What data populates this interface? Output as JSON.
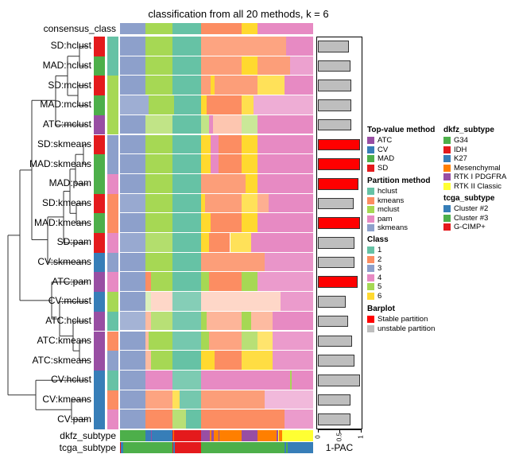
{
  "chart_data": {
    "type": "heatmap",
    "title": "classification from all 20 methods, k = 6",
    "consensus_label": "consensus_class",
    "consensus": [
      {
        "class": 3,
        "end_pct": 13
      },
      {
        "class": 5,
        "end_pct": 27
      },
      {
        "class": 1,
        "end_pct": 42
      },
      {
        "class": 2,
        "end_pct": 63
      },
      {
        "class": 6,
        "end_pct": 71
      },
      {
        "class": 4,
        "end_pct": 100
      }
    ],
    "class_colors": {
      "1": "#66C2A5",
      "2": "#FC8D62",
      "3": "#8DA0CB",
      "4": "#E78AC3",
      "5": "#A6D854",
      "6": "#FFD92F"
    },
    "method_colors": {
      "ATC": "#984EA3",
      "CV": "#377EB8",
      "MAD": "#4DAF4A",
      "SD": "#E41A1C"
    },
    "partition_colors": {
      "hclust": "#66C2A5",
      "kmeans": "#FC8D62",
      "mclust": "#A6D854",
      "pam": "#E78AC3",
      "skmeans": "#8DA0CB"
    },
    "rows": [
      {
        "label": "SD:hclust",
        "top": "SD",
        "part": "hclust",
        "pac": 0.73,
        "stable": false,
        "segs": [
          [
            3,
            13
          ],
          [
            5,
            27
          ],
          [
            1,
            42
          ],
          [
            2,
            86,
            0.8
          ],
          [
            4,
            100
          ]
        ]
      },
      {
        "label": "MAD:hclust",
        "top": "MAD",
        "part": "hclust",
        "pac": 0.76,
        "stable": false,
        "segs": [
          [
            3,
            13
          ],
          [
            5,
            27
          ],
          [
            1,
            42
          ],
          [
            2,
            63,
            0.85
          ],
          [
            6,
            71
          ],
          [
            2,
            88,
            0.85
          ],
          [
            4,
            100,
            0.8
          ]
        ]
      },
      {
        "label": "SD:mclust",
        "top": "SD",
        "part": "mclust",
        "pac": 0.78,
        "stable": false,
        "segs": [
          [
            3,
            13
          ],
          [
            5,
            27
          ],
          [
            1,
            42
          ],
          [
            2,
            47,
            0.85
          ],
          [
            6,
            49
          ],
          [
            2,
            71,
            0.85
          ],
          [
            6,
            85,
            0.8
          ],
          [
            4,
            100
          ]
        ]
      },
      {
        "label": "MAD:mclust",
        "top": "MAD",
        "part": "mclust",
        "pac": 0.77,
        "stable": false,
        "segs": [
          [
            3,
            15,
            0.85
          ],
          [
            5,
            28
          ],
          [
            1,
            42
          ],
          [
            6,
            45
          ],
          [
            2,
            63
          ],
          [
            6,
            69,
            0.85
          ],
          [
            4,
            100,
            0.7
          ]
        ]
      },
      {
        "label": "ATC:mclust",
        "top": "ATC",
        "part": "mclust",
        "pac": 0.78,
        "stable": false,
        "segs": [
          [
            3,
            13
          ],
          [
            5,
            27,
            0.7
          ],
          [
            1,
            42
          ],
          [
            5,
            46,
            0.7
          ],
          [
            4,
            48
          ],
          [
            2,
            63,
            0.5
          ],
          [
            5,
            71,
            0.6
          ],
          [
            4,
            100
          ]
        ]
      },
      {
        "label": "SD:skmeans",
        "top": "SD",
        "part": "skmeans",
        "pac": 0.99,
        "stable": true,
        "segs": [
          [
            3,
            13
          ],
          [
            5,
            27
          ],
          [
            1,
            42
          ],
          [
            6,
            47
          ],
          [
            4,
            51
          ],
          [
            2,
            63
          ],
          [
            6,
            71
          ],
          [
            4,
            100
          ]
        ]
      },
      {
        "label": "MAD:skmeans",
        "top": "MAD",
        "part": "skmeans",
        "pac": 0.98,
        "stable": true,
        "segs": [
          [
            3,
            13
          ],
          [
            5,
            27
          ],
          [
            1,
            42
          ],
          [
            6,
            47
          ],
          [
            4,
            51
          ],
          [
            2,
            63
          ],
          [
            6,
            71
          ],
          [
            4,
            100
          ]
        ]
      },
      {
        "label": "MAD:pam",
        "top": "MAD",
        "part": "pam",
        "pac": 0.95,
        "stable": true,
        "segs": [
          [
            3,
            13
          ],
          [
            5,
            27
          ],
          [
            1,
            42
          ],
          [
            2,
            65,
            0.85
          ],
          [
            6,
            71
          ],
          [
            4,
            100
          ]
        ]
      },
      {
        "label": "SD:kmeans",
        "top": "SD",
        "part": "kmeans",
        "pac": 0.83,
        "stable": false,
        "segs": [
          [
            3,
            13,
            0.9
          ],
          [
            5,
            27
          ],
          [
            1,
            42
          ],
          [
            6,
            44
          ],
          [
            2,
            63,
            0.85
          ],
          [
            6,
            71,
            0.8
          ],
          [
            2,
            77,
            0.7
          ],
          [
            4,
            100
          ]
        ]
      },
      {
        "label": "MAD:kmeans",
        "top": "MAD",
        "part": "kmeans",
        "pac": 0.98,
        "stable": true,
        "segs": [
          [
            3,
            13
          ],
          [
            5,
            27
          ],
          [
            1,
            42
          ],
          [
            6,
            47
          ],
          [
            2,
            63
          ],
          [
            6,
            71
          ],
          [
            4,
            100
          ]
        ]
      },
      {
        "label": "SD:pam",
        "top": "SD",
        "part": "pam",
        "pac": 0.86,
        "stable": false,
        "segs": [
          [
            3,
            13,
            0.9
          ],
          [
            5,
            27,
            0.85
          ],
          [
            1,
            42
          ],
          [
            6,
            46
          ],
          [
            2,
            57
          ],
          [
            6,
            68,
            0.8
          ],
          [
            4,
            100
          ]
        ]
      },
      {
        "label": "CV:skmeans",
        "top": "CV",
        "part": "skmeans",
        "pac": 0.85,
        "stable": false,
        "segs": [
          [
            3,
            13
          ],
          [
            5,
            27
          ],
          [
            1,
            42
          ],
          [
            2,
            75,
            0.85
          ],
          [
            4,
            100,
            0.9
          ]
        ]
      },
      {
        "label": "ATC:pam",
        "top": "ATC",
        "part": "pam",
        "pac": 0.92,
        "stable": true,
        "segs": [
          [
            3,
            13
          ],
          [
            2,
            16
          ],
          [
            5,
            27
          ],
          [
            1,
            42
          ],
          [
            5,
            46
          ],
          [
            2,
            63
          ],
          [
            5,
            71
          ],
          [
            4,
            100,
            0.85
          ]
        ]
      },
      {
        "label": "CV:mclust",
        "top": "CV",
        "part": "mclust",
        "pac": 0.64,
        "stable": false,
        "segs": [
          [
            3,
            13
          ],
          [
            5,
            16,
            0.4
          ],
          [
            2,
            27,
            0.35
          ],
          [
            1,
            42,
            0.8
          ],
          [
            2,
            83,
            0.35
          ],
          [
            4,
            100,
            0.85
          ]
        ]
      },
      {
        "label": "ATC:hclust",
        "top": "ATC",
        "part": "hclust",
        "pac": 0.7,
        "stable": false,
        "segs": [
          [
            3,
            13,
            0.8
          ],
          [
            2,
            16,
            0.6
          ],
          [
            5,
            27,
            0.8
          ],
          [
            1,
            42,
            0.9
          ],
          [
            5,
            45
          ],
          [
            2,
            63,
            0.65
          ],
          [
            5,
            68
          ],
          [
            2,
            79,
            0.6
          ],
          [
            4,
            100
          ]
        ]
      },
      {
        "label": "ATC:kmeans",
        "top": "ATC",
        "part": "kmeans",
        "pac": 0.8,
        "stable": false,
        "segs": [
          [
            3,
            13
          ],
          [
            2,
            15,
            0.6
          ],
          [
            5,
            27
          ],
          [
            1,
            42,
            0.9
          ],
          [
            5,
            46
          ],
          [
            2,
            63,
            0.8
          ],
          [
            5,
            71,
            0.8
          ],
          [
            6,
            79,
            0.7
          ],
          [
            4,
            100,
            0.85
          ]
        ]
      },
      {
        "label": "ATC:skmeans",
        "top": "ATC",
        "part": "skmeans",
        "pac": 0.85,
        "stable": false,
        "segs": [
          [
            3,
            13
          ],
          [
            2,
            16,
            0.6
          ],
          [
            5,
            27
          ],
          [
            1,
            42
          ],
          [
            6,
            49
          ],
          [
            2,
            63
          ],
          [
            6,
            79,
            0.9
          ],
          [
            4,
            100,
            0.9
          ]
        ]
      },
      {
        "label": "CV:hclust",
        "top": "CV",
        "part": "hclust",
        "pac": 0.98,
        "stable": false,
        "segs": [
          [
            3,
            13
          ],
          [
            4,
            27
          ],
          [
            1,
            42,
            0.85
          ],
          [
            4,
            88
          ],
          [
            5,
            89
          ],
          [
            4,
            100
          ]
        ]
      },
      {
        "label": "CV:kmeans",
        "top": "CV",
        "part": "kmeans",
        "pac": 0.75,
        "stable": false,
        "segs": [
          [
            3,
            13
          ],
          [
            2,
            27,
            0.8
          ],
          [
            6,
            31,
            0.8
          ],
          [
            1,
            42,
            0.9
          ],
          [
            2,
            75,
            0.85
          ],
          [
            4,
            100,
            0.6
          ]
        ]
      },
      {
        "label": "CV:pam",
        "top": "CV",
        "part": "pam",
        "pac": 0.75,
        "stable": false,
        "segs": [
          [
            3,
            13
          ],
          [
            2,
            27
          ],
          [
            5,
            34,
            0.8
          ],
          [
            1,
            42
          ],
          [
            2,
            85
          ],
          [
            4,
            100,
            0.85
          ]
        ]
      }
    ],
    "annotations": [
      {
        "label": "dkfz_subtype",
        "segs": [
          [
            "#4DAF4A",
            13
          ],
          [
            "#377EB8",
            16
          ],
          [
            "#984EA3",
            16.5
          ],
          [
            "#377EB8",
            27
          ],
          [
            "#E41A1C",
            27.5
          ],
          [
            "#FF7F00",
            28
          ],
          [
            "#E41A1C",
            42
          ],
          [
            "#984EA3",
            46.5
          ],
          [
            "#FF7F00",
            47.5
          ],
          [
            "#984EA3",
            48.5
          ],
          [
            "#FF7F00",
            51
          ],
          [
            "#984EA3",
            51.5
          ],
          [
            "#FF7F00",
            63
          ],
          [
            "#984EA3",
            71
          ],
          [
            "#FF7F00",
            81
          ],
          [
            "#984EA3",
            82
          ],
          [
            "#FFFF33",
            82.5
          ],
          [
            "#FF7F00",
            84
          ],
          [
            "#FFFF33",
            100
          ]
        ]
      },
      {
        "label": "tcga_subtype",
        "segs": [
          [
            "#E41A1C",
            0.6
          ],
          [
            "#377EB8",
            1.5
          ],
          [
            "#4DAF4A",
            27
          ],
          [
            "#E41A1C",
            27.6
          ],
          [
            "#377EB8",
            28.2
          ],
          [
            "#E41A1C",
            42
          ],
          [
            "#4DAF4A",
            85
          ],
          [
            "#377EB8",
            86
          ],
          [
            "#4DAF4A",
            87
          ],
          [
            "#377EB8",
            100
          ]
        ]
      }
    ],
    "barplot": {
      "xlabel": "1-PAC",
      "xlim": [
        0,
        1
      ],
      "ticks": [
        "0",
        "0.5",
        "1"
      ],
      "stable_color": "#FF0000",
      "unstable_color": "#BEBEBE"
    }
  },
  "legend": {
    "top_value": {
      "title": "Top-value method",
      "items": [
        {
          "label": "ATC",
          "color": "#984EA3"
        },
        {
          "label": "CV",
          "color": "#377EB8"
        },
        {
          "label": "MAD",
          "color": "#4DAF4A"
        },
        {
          "label": "SD",
          "color": "#E41A1C"
        }
      ]
    },
    "partition": {
      "title": "Partition method",
      "items": [
        {
          "label": "hclust",
          "color": "#66C2A5"
        },
        {
          "label": "kmeans",
          "color": "#FC8D62"
        },
        {
          "label": "mclust",
          "color": "#A6D854"
        },
        {
          "label": "pam",
          "color": "#E78AC3"
        },
        {
          "label": "skmeans",
          "color": "#8DA0CB"
        }
      ]
    },
    "class": {
      "title": "Class",
      "items": [
        {
          "label": "1",
          "color": "#66C2A5"
        },
        {
          "label": "2",
          "color": "#FC8D62"
        },
        {
          "label": "3",
          "color": "#8DA0CB"
        },
        {
          "label": "4",
          "color": "#E78AC3"
        },
        {
          "label": "5",
          "color": "#A6D854"
        },
        {
          "label": "6",
          "color": "#FFD92F"
        }
      ]
    },
    "barplot": {
      "title": "Barplot",
      "items": [
        {
          "label": "Stable partition",
          "color": "#FF0000"
        },
        {
          "label": "unstable partition",
          "color": "#BEBEBE"
        }
      ]
    },
    "dkfz": {
      "title": "dkfz_subtype",
      "items": [
        {
          "label": "G34",
          "color": "#4DAF4A"
        },
        {
          "label": "IDH",
          "color": "#E41A1C"
        },
        {
          "label": "K27",
          "color": "#377EB8"
        },
        {
          "label": "Mesenchymal",
          "color": "#FF7F00"
        },
        {
          "label": "RTK I PDGFRA",
          "color": "#984EA3"
        },
        {
          "label": "RTK II Classic",
          "color": "#FFFF33"
        }
      ]
    },
    "tcga": {
      "title": "tcga_subtype",
      "items": [
        {
          "label": "Cluster #2",
          "color": "#377EB8"
        },
        {
          "label": "Cluster #3",
          "color": "#4DAF4A"
        },
        {
          "label": "G-CIMP+",
          "color": "#E41A1C"
        }
      ]
    }
  }
}
